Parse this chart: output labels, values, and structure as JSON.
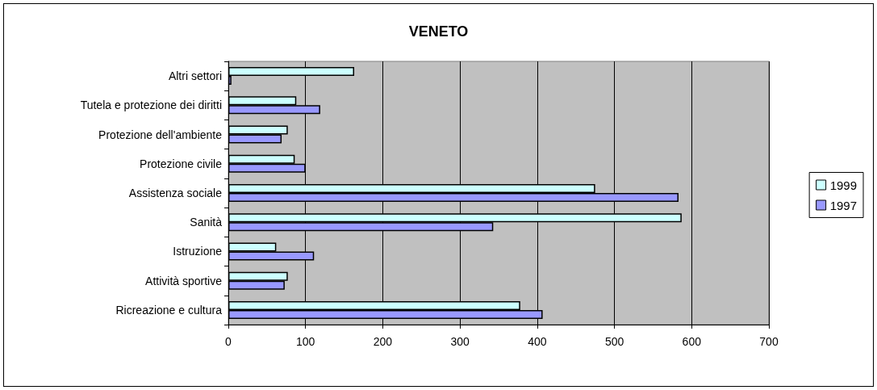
{
  "chart_data": {
    "type": "bar",
    "title": "VENETO",
    "orientation": "horizontal",
    "categories": [
      "Altri settori",
      "Tutela e protezione dei diritti",
      "Protezione dell'ambiente",
      "Protezione civile",
      "Assistenza sociale",
      "Sanità",
      "Istruzione",
      "Attività sportive",
      "Ricreazione e cultura"
    ],
    "series": [
      {
        "name": "1999",
        "color": "#ccffff",
        "values": [
          163,
          88,
          77,
          86,
          475,
          587,
          62,
          77,
          378
        ]
      },
      {
        "name": "1997",
        "color": "#9999ff",
        "values": [
          4,
          119,
          69,
          100,
          583,
          343,
          111,
          73,
          407
        ]
      }
    ],
    "xlim": [
      0,
      700
    ],
    "xticks": [
      0,
      100,
      200,
      300,
      400,
      500,
      600,
      700
    ],
    "grid": "x",
    "legend": "right"
  }
}
